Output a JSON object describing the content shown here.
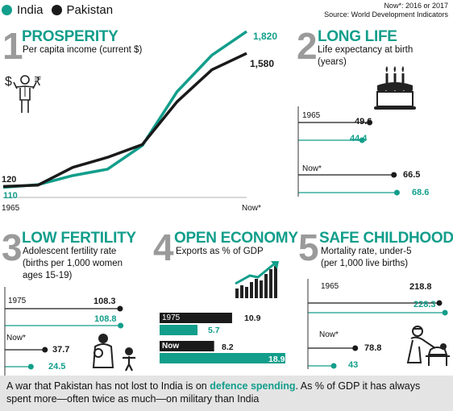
{
  "legend": {
    "items": [
      {
        "name": "India",
        "color": "#129e8b"
      },
      {
        "name": "Pakistan",
        "color": "#1a1a1a"
      }
    ]
  },
  "notes": {
    "now": "Now*: 2016 or 2017",
    "source": "Source: World Development Indicators"
  },
  "sections": {
    "prosperity": {
      "num": "1",
      "title": "PROSPERITY",
      "subtitle": "Per capita income (current $)"
    },
    "longlife": {
      "num": "2",
      "title": "LONG LIFE",
      "subtitle": "Life expectancy at birth\n(years)"
    },
    "fertility": {
      "num": "3",
      "title": "LOW FERTILITY",
      "subtitle": "Adolescent fertility rate\n(births per 1,000 women\nages 15-19)"
    },
    "economy": {
      "num": "4",
      "title": "OPEN ECONOMY",
      "subtitle": "Exports as % of GDP"
    },
    "childhood": {
      "num": "5",
      "title": "SAFE CHILDHOOD",
      "subtitle": "Mortality rate, under-5\n(per 1,000 live births)"
    }
  },
  "footer": {
    "before": "A war that Pakistan has not lost to India is on ",
    "highlight": "defence spending",
    "after": ". As % of GDP it has always spent more—often twice as much—on military than India"
  },
  "colors": {
    "india": "#129e8b",
    "pakistan": "#1a1a1a",
    "gray": "#9a9a9a"
  },
  "chart_data": [
    {
      "type": "line",
      "title": "PROSPERITY",
      "subtitle": "Per capita income (current $)",
      "x_labels": [
        "1965",
        "Now*"
      ],
      "series": [
        {
          "name": "India",
          "start_label": "110",
          "end_label": "1,820",
          "values": [
            110,
            140,
            240,
            310,
            570,
            1160,
            1560,
            1820
          ]
        },
        {
          "name": "Pakistan",
          "start_label": "120",
          "end_label": "1,580",
          "values": [
            120,
            135,
            330,
            440,
            580,
            1050,
            1400,
            1580
          ]
        }
      ],
      "ylim": [
        0,
        1900
      ]
    },
    {
      "type": "bar",
      "title": "LONG LIFE",
      "categories": [
        "1965",
        "Now*"
      ],
      "series": [
        {
          "name": "Pakistan",
          "values": [
            49.6,
            66.5
          ],
          "labels": [
            "49.6",
            "66.5"
          ]
        },
        {
          "name": "India",
          "values": [
            44.4,
            68.6
          ],
          "labels": [
            "44.4",
            "68.6"
          ]
        }
      ]
    },
    {
      "type": "bar",
      "title": "LOW FERTILITY",
      "categories": [
        "1975",
        "Now*"
      ],
      "series": [
        {
          "name": "Pakistan",
          "values": [
            108.3,
            37.7
          ],
          "labels": [
            "108.3",
            "37.7"
          ]
        },
        {
          "name": "India",
          "values": [
            108.8,
            24.5
          ],
          "labels": [
            "108.8",
            "24.5"
          ]
        }
      ]
    },
    {
      "type": "bar",
      "title": "OPEN ECONOMY",
      "categories": [
        "1975",
        "Now"
      ],
      "series": [
        {
          "name": "Pakistan",
          "values": [
            10.9,
            8.2
          ],
          "labels": [
            "10.9",
            "8.2"
          ]
        },
        {
          "name": "India",
          "values": [
            5.7,
            18.9
          ],
          "labels": [
            "5.7",
            "18.9"
          ]
        }
      ]
    },
    {
      "type": "bar",
      "title": "SAFE CHILDHOOD",
      "categories": [
        "1965",
        "Now*"
      ],
      "series": [
        {
          "name": "Pakistan",
          "values": [
            218.8,
            78.8
          ],
          "labels": [
            "218.8",
            "78.8"
          ]
        },
        {
          "name": "India",
          "values": [
            228.3,
            43
          ],
          "labels": [
            "228.3",
            "43"
          ]
        }
      ]
    }
  ]
}
